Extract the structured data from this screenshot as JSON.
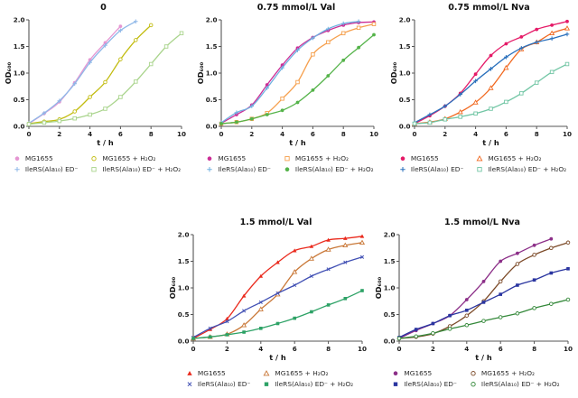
{
  "figure": {
    "background": "#ffffff",
    "axis_color": "#555555",
    "text_color": "#1c1c1c"
  },
  "chart_data": [
    {
      "type": "line",
      "title": "0",
      "xlabel": "t / h",
      "ylabel": "OD₆₀₀",
      "xlim": [
        0,
        10
      ],
      "ylim": [
        0,
        2
      ],
      "xticks": [
        0,
        2,
        4,
        6,
        8,
        10
      ],
      "yticks": [
        0,
        0.5,
        1,
        1.5,
        2
      ],
      "xtick_labels": [
        "0",
        "2",
        "4",
        "6",
        "8",
        "10"
      ],
      "ytick_labels": [
        "0.0",
        "0.5",
        "1.0",
        "1.5",
        "2.0"
      ],
      "grid": false,
      "legend_position": "bottom",
      "series": [
        {
          "name": "MG1655",
          "color": "#e596d2",
          "marker": "filled-circle",
          "x": [
            0,
            1,
            2,
            3,
            4,
            5,
            6
          ],
          "values": [
            0.05,
            0.24,
            0.46,
            0.82,
            1.25,
            1.57,
            1.88
          ]
        },
        {
          "name": "MG1655 + H₂O₂",
          "color": "#c2bc10",
          "marker": "open-circle",
          "x": [
            0,
            1,
            2,
            3,
            4,
            5,
            6,
            7,
            8
          ],
          "values": [
            0.05,
            0.09,
            0.13,
            0.28,
            0.55,
            0.83,
            1.26,
            1.62,
            1.9
          ]
        },
        {
          "name": "IleRS(Ala₁₀) ED⁻",
          "color": "#8fb8e8",
          "marker": "plus",
          "x": [
            0,
            1,
            2,
            3,
            4,
            5,
            6,
            7
          ],
          "values": [
            0.06,
            0.25,
            0.48,
            0.8,
            1.2,
            1.52,
            1.8,
            1.97
          ]
        },
        {
          "name": "IleRS(Ala₁₀) ED⁻ + H₂O₂",
          "color": "#a9d48c",
          "marker": "open-square",
          "x": [
            0,
            1,
            2,
            3,
            4,
            5,
            6,
            7,
            8,
            9,
            10
          ],
          "values": [
            0.04,
            0.07,
            0.1,
            0.15,
            0.22,
            0.33,
            0.55,
            0.84,
            1.17,
            1.5,
            1.75
          ]
        }
      ]
    },
    {
      "type": "line",
      "title": "0.75 mmol/L Val",
      "xlabel": "t / h",
      "ylabel": "OD₆₀₀",
      "xlim": [
        0,
        10
      ],
      "ylim": [
        0,
        2
      ],
      "xticks": [
        0,
        2,
        4,
        6,
        8,
        10
      ],
      "yticks": [
        0,
        0.5,
        1,
        1.5,
        2
      ],
      "xtick_labels": [
        "0",
        "2",
        "4",
        "6",
        "8",
        "10"
      ],
      "ytick_labels": [
        "0.0",
        "0.5",
        "1.0",
        "1.5",
        "2.0"
      ],
      "grid": false,
      "legend_position": "bottom",
      "series": [
        {
          "name": "MG1655",
          "color": "#cc2e96",
          "marker": "filled-circle",
          "x": [
            0,
            1,
            2,
            3,
            4,
            5,
            6,
            7,
            8,
            9,
            10
          ],
          "values": [
            0.06,
            0.22,
            0.4,
            0.78,
            1.15,
            1.47,
            1.67,
            1.8,
            1.9,
            1.95,
            1.96
          ]
        },
        {
          "name": "MG1655 + H₂O₂",
          "color": "#f6a04e",
          "marker": "open-square",
          "x": [
            0,
            1,
            2,
            3,
            4,
            5,
            6,
            7,
            8,
            9,
            10
          ],
          "values": [
            0.05,
            0.08,
            0.14,
            0.25,
            0.52,
            0.83,
            1.35,
            1.58,
            1.75,
            1.85,
            1.92
          ]
        },
        {
          "name": "IleRS(Ala₁₀) ED⁻",
          "color": "#70b0e0",
          "marker": "plus",
          "x": [
            0,
            1,
            2,
            3,
            4,
            5,
            6,
            7,
            8,
            9
          ],
          "values": [
            0.07,
            0.26,
            0.38,
            0.72,
            1.1,
            1.43,
            1.66,
            1.83,
            1.93,
            1.97
          ]
        },
        {
          "name": "IleRS(Ala₁₀) ED⁻ + H₂O₂",
          "color": "#54b349",
          "marker": "filled-circle",
          "x": [
            0,
            1,
            2,
            3,
            4,
            5,
            6,
            7,
            8,
            9,
            10
          ],
          "values": [
            0.05,
            0.08,
            0.14,
            0.22,
            0.3,
            0.45,
            0.68,
            0.95,
            1.24,
            1.48,
            1.72
          ]
        }
      ]
    },
    {
      "type": "line",
      "title": "0.75 mmol/L Nva",
      "xlabel": "t / h",
      "ylabel": "OD₆₀₀",
      "xlim": [
        0,
        10
      ],
      "ylim": [
        0,
        2
      ],
      "xticks": [
        0,
        2,
        4,
        6,
        8,
        10
      ],
      "yticks": [
        0,
        0.5,
        1,
        1.5,
        2
      ],
      "xtick_labels": [
        "0",
        "2",
        "4",
        "6",
        "8",
        "10"
      ],
      "ytick_labels": [
        "0.0",
        "0.5",
        "1.0",
        "1.5",
        "2.0"
      ],
      "grid": false,
      "legend_position": "bottom",
      "series": [
        {
          "name": "MG1655",
          "color": "#e51a67",
          "marker": "filled-circle",
          "x": [
            0,
            1,
            2,
            3,
            4,
            5,
            6,
            7,
            8,
            9,
            10
          ],
          "values": [
            0.05,
            0.2,
            0.38,
            0.62,
            0.98,
            1.33,
            1.55,
            1.68,
            1.82,
            1.9,
            1.97
          ]
        },
        {
          "name": "MG1655 + H₂O₂",
          "color": "#f1681f",
          "marker": "open-triangle",
          "x": [
            0,
            1,
            2,
            3,
            4,
            5,
            6,
            7,
            8,
            9,
            10
          ],
          "values": [
            0.05,
            0.08,
            0.14,
            0.27,
            0.45,
            0.72,
            1.1,
            1.45,
            1.58,
            1.75,
            1.84
          ]
        },
        {
          "name": "IleRS(Ala₁₀) ED⁻",
          "color": "#2a70bc",
          "marker": "plus",
          "x": [
            0,
            1,
            2,
            3,
            4,
            5,
            6,
            7,
            8,
            9,
            10
          ],
          "values": [
            0.07,
            0.22,
            0.38,
            0.6,
            0.85,
            1.08,
            1.3,
            1.47,
            1.58,
            1.65,
            1.73
          ]
        },
        {
          "name": "IleRS(Ala₁₀) ED⁻ + H₂O₂",
          "color": "#72c6a5",
          "marker": "open-square",
          "x": [
            0,
            1,
            2,
            3,
            4,
            5,
            6,
            7,
            8,
            9,
            10
          ],
          "values": [
            0.05,
            0.07,
            0.13,
            0.18,
            0.24,
            0.33,
            0.46,
            0.62,
            0.82,
            1.02,
            1.17
          ]
        }
      ]
    },
    {
      "type": "line",
      "title": "1.5 mmol/L Val",
      "xlabel": "t / h",
      "ylabel": "OD₆₀₀",
      "xlim": [
        0,
        10
      ],
      "ylim": [
        0,
        2
      ],
      "xticks": [
        0,
        2,
        4,
        6,
        8,
        10
      ],
      "yticks": [
        0,
        0.5,
        1,
        1.5,
        2
      ],
      "xtick_labels": [
        "0",
        "2",
        "4",
        "6",
        "8",
        "10"
      ],
      "ytick_labels": [
        "0.0",
        "0.5",
        "1.0",
        "1.5",
        "2.0"
      ],
      "grid": false,
      "legend_position": "bottom",
      "series": [
        {
          "name": "MG1655",
          "color": "#ea2a1d",
          "marker": "filled-triangle",
          "x": [
            0,
            1,
            2,
            3,
            4,
            5,
            6,
            7,
            8,
            9,
            10
          ],
          "values": [
            0.05,
            0.22,
            0.42,
            0.85,
            1.22,
            1.48,
            1.7,
            1.78,
            1.9,
            1.93,
            1.97
          ]
        },
        {
          "name": "MG1655 + H₂O₂",
          "color": "#c97838",
          "marker": "open-triangle",
          "x": [
            0,
            1,
            2,
            3,
            4,
            5,
            6,
            7,
            8,
            9,
            10
          ],
          "values": [
            0.05,
            0.08,
            0.13,
            0.3,
            0.6,
            0.88,
            1.3,
            1.55,
            1.72,
            1.8,
            1.85
          ]
        },
        {
          "name": "IleRS(Ala₁₀) ED⁻",
          "color": "#4150b4",
          "marker": "x",
          "x": [
            0,
            1,
            2,
            3,
            4,
            5,
            6,
            7,
            8,
            9,
            10
          ],
          "values": [
            0.07,
            0.24,
            0.37,
            0.57,
            0.73,
            0.9,
            1.05,
            1.22,
            1.35,
            1.48,
            1.58
          ]
        },
        {
          "name": "IleRS(Ala₁₀) ED⁻ + H₂O₂",
          "color": "#2da266",
          "marker": "filled-square",
          "x": [
            0,
            1,
            2,
            3,
            4,
            5,
            6,
            7,
            8,
            9,
            10
          ],
          "values": [
            0.05,
            0.08,
            0.12,
            0.17,
            0.24,
            0.33,
            0.43,
            0.55,
            0.68,
            0.8,
            0.95
          ]
        }
      ]
    },
    {
      "type": "line",
      "title": "1.5 mmol/L Nva",
      "xlabel": "t / h",
      "ylabel": "OD₆₀₀",
      "xlim": [
        0,
        10
      ],
      "ylim": [
        0,
        2
      ],
      "xticks": [
        0,
        2,
        4,
        6,
        8,
        10
      ],
      "yticks": [
        0,
        0.5,
        1,
        1.5,
        2
      ],
      "xtick_labels": [
        "0",
        "2",
        "4",
        "6",
        "8",
        "10"
      ],
      "ytick_labels": [
        "0.0",
        "0.5",
        "1.0",
        "1.5",
        "2.0"
      ],
      "grid": false,
      "legend_position": "bottom",
      "series": [
        {
          "name": "MG1655",
          "color": "#8c2f88",
          "marker": "filled-circle",
          "x": [
            0,
            1,
            2,
            3,
            4,
            5,
            6,
            7,
            8,
            9
          ],
          "values": [
            0.05,
            0.2,
            0.33,
            0.48,
            0.78,
            1.12,
            1.5,
            1.65,
            1.8,
            1.92
          ]
        },
        {
          "name": "MG1655 + H₂O₂",
          "color": "#7c4a28",
          "marker": "open-circle",
          "x": [
            0,
            1,
            2,
            3,
            4,
            5,
            6,
            7,
            8,
            9,
            10
          ],
          "values": [
            0.05,
            0.08,
            0.14,
            0.28,
            0.48,
            0.75,
            1.12,
            1.45,
            1.62,
            1.75,
            1.85
          ]
        },
        {
          "name": "IleRS(Ala₁₀) ED⁻",
          "color": "#2a35a0",
          "marker": "filled-square",
          "x": [
            0,
            1,
            2,
            3,
            4,
            5,
            6,
            7,
            8,
            9,
            10
          ],
          "values": [
            0.07,
            0.22,
            0.33,
            0.48,
            0.58,
            0.73,
            0.88,
            1.05,
            1.15,
            1.28,
            1.36
          ]
        },
        {
          "name": "IleRS(Ala₁₀) ED⁻ + H₂O₂",
          "color": "#35893b",
          "marker": "open-circle",
          "x": [
            0,
            1,
            2,
            3,
            4,
            5,
            6,
            7,
            8,
            9,
            10
          ],
          "values": [
            0.05,
            0.09,
            0.15,
            0.23,
            0.3,
            0.38,
            0.45,
            0.52,
            0.62,
            0.7,
            0.78
          ]
        }
      ]
    }
  ]
}
